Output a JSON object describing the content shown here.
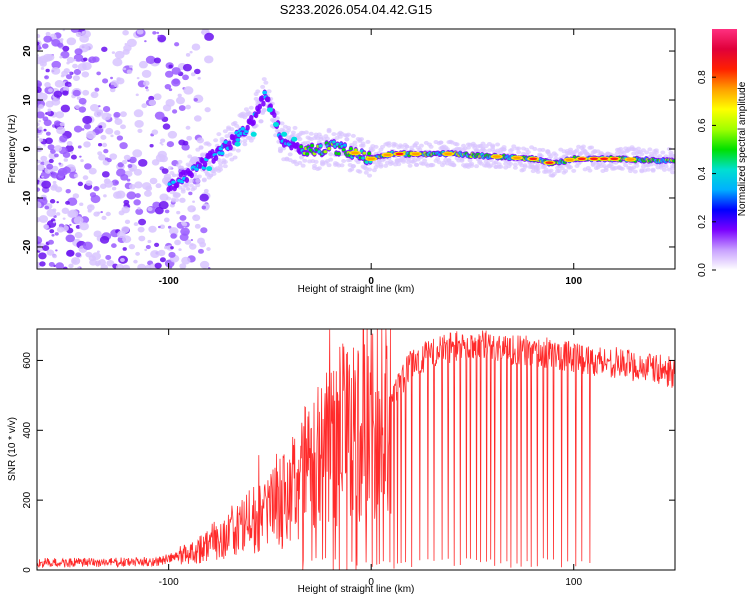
{
  "title": "S233.2026.054.04.42.G15",
  "chart_data": [
    {
      "type": "heatmap",
      "name": "spectrogram",
      "xlabel": "Height of straight line (km)",
      "ylabel": "Frequency (Hz)",
      "xlim": [
        -165,
        150
      ],
      "ylim": [
        -24.5,
        24.5
      ],
      "xticks": [
        -100,
        0,
        100
      ],
      "yticks": [
        -20,
        -10,
        0,
        10,
        20
      ],
      "colorbar": {
        "label": "Normalized spectral amplitude",
        "range": [
          0,
          1
        ],
        "ticks": [
          "0.0",
          "0.2",
          "0.4",
          "0.6",
          "0.8"
        ],
        "colors": [
          "#ffffff",
          "#c8a0ff",
          "#7a00ff",
          "#0000ff",
          "#00b0ff",
          "#00e0d0",
          "#00e000",
          "#a0ff00",
          "#ffff00",
          "#ffa000",
          "#ff2000",
          "#e0003a",
          "#ff3080"
        ]
      },
      "signal_track": {
        "x": [
          -100,
          -90,
          -80,
          -70,
          -60,
          -52,
          -44,
          -36,
          -28,
          -20,
          -10,
          0,
          10,
          20,
          40,
          60,
          80,
          90,
          100,
          120,
          150
        ],
        "y": [
          -8,
          -5,
          -2,
          1,
          5,
          11,
          2,
          0.5,
          -0.5,
          0.5,
          -0.5,
          -2,
          -1,
          -1,
          -1,
          -1.5,
          -2,
          -3,
          -2,
          -2,
          -2.5
        ]
      }
    },
    {
      "type": "line",
      "name": "snr",
      "xlabel": "Height of straight line (km)",
      "ylabel": "SNR (10 * v/v)",
      "xlim": [
        -165,
        150
      ],
      "ylim": [
        0,
        690
      ],
      "xticks": [
        -100,
        0,
        100
      ],
      "yticks": [
        0,
        200,
        400,
        600
      ],
      "color": "#ff2020",
      "envelope": {
        "x": [
          -165,
          -120,
          -105,
          -95,
          -85,
          -75,
          -65,
          -55,
          -45,
          -35,
          -25,
          -15,
          -5,
          5,
          15,
          20,
          30,
          40,
          50,
          60,
          70,
          80,
          90,
          100,
          110,
          120,
          130,
          140,
          150
        ],
        "y": [
          20,
          22,
          25,
          40,
          60,
          90,
          120,
          150,
          190,
          260,
          330,
          380,
          420,
          470,
          540,
          590,
          620,
          640,
          645,
          640,
          630,
          625,
          620,
          610,
          600,
          595,
          585,
          575,
          565
        ]
      },
      "dropouts_x": [
        17,
        20,
        24,
        28,
        31,
        35,
        38,
        41,
        44,
        47,
        49,
        52,
        54,
        57,
        59,
        61,
        64,
        67,
        69,
        72,
        74,
        77,
        79,
        82,
        85,
        87,
        90,
        94,
        97,
        101,
        104,
        108
      ],
      "spike": {
        "x": -20.5,
        "y": 688
      }
    }
  ]
}
